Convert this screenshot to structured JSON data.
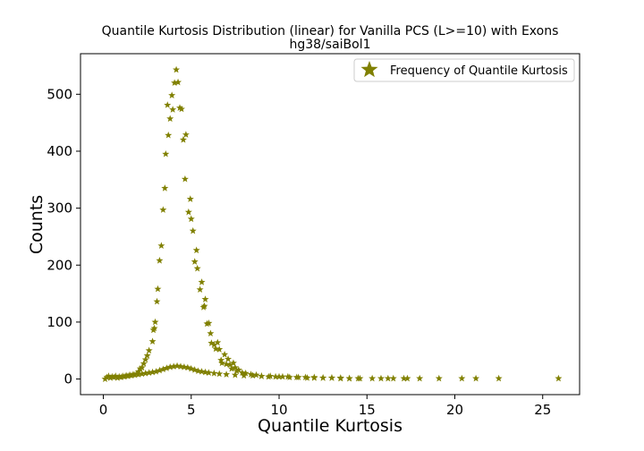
{
  "chart_data": {
    "type": "scatter",
    "title": "Quantile Kurtosis Distribution (linear) for Vanilla PCS (L>=10) with Exons",
    "subtitle": "hg38/saiBol1",
    "xlabel": "Quantile Kurtosis",
    "ylabel": "Counts",
    "xlim": [
      -1.3,
      27.1
    ],
    "ylim": [
      -27.4,
      571.2
    ],
    "xticks": [
      0,
      5,
      10,
      15,
      20,
      25
    ],
    "yticks": [
      0,
      100,
      200,
      300,
      400,
      500
    ],
    "legend_position": "top-right",
    "grid": false,
    "marker": "star",
    "color": "#808000",
    "series": [
      {
        "name": "Frequency of Quantile Kurtosis",
        "points": [
          [
            2.0,
            13
          ],
          [
            2.1,
            18
          ],
          [
            2.2,
            20
          ],
          [
            2.3,
            27
          ],
          [
            2.4,
            34
          ],
          [
            2.5,
            41
          ],
          [
            2.6,
            50
          ],
          [
            2.8,
            66
          ],
          [
            2.85,
            86
          ],
          [
            2.9,
            89
          ],
          [
            2.95,
            100
          ],
          [
            3.05,
            136
          ],
          [
            3.1,
            158
          ],
          [
            3.2,
            208
          ],
          [
            3.3,
            234
          ],
          [
            3.4,
            297
          ],
          [
            3.5,
            335
          ],
          [
            3.55,
            395
          ],
          [
            3.65,
            481
          ],
          [
            3.7,
            428
          ],
          [
            3.8,
            457
          ],
          [
            3.9,
            498
          ],
          [
            3.95,
            473
          ],
          [
            4.05,
            520
          ],
          [
            4.15,
            543
          ],
          [
            4.25,
            521
          ],
          [
            4.35,
            476
          ],
          [
            4.45,
            474
          ],
          [
            4.55,
            420
          ],
          [
            4.65,
            351
          ],
          [
            4.7,
            429
          ],
          [
            4.85,
            293
          ],
          [
            4.95,
            316
          ],
          [
            5.0,
            281
          ],
          [
            5.1,
            260
          ],
          [
            5.2,
            206
          ],
          [
            5.3,
            226
          ],
          [
            5.35,
            194
          ],
          [
            5.5,
            157
          ],
          [
            5.6,
            170
          ],
          [
            5.7,
            126
          ],
          [
            5.75,
            128
          ],
          [
            5.8,
            140
          ],
          [
            5.9,
            97
          ],
          [
            6.0,
            98
          ],
          [
            6.1,
            80
          ],
          [
            6.15,
            63
          ],
          [
            6.3,
            60
          ],
          [
            6.4,
            53
          ],
          [
            6.5,
            64
          ],
          [
            6.6,
            52
          ],
          [
            6.7,
            33
          ],
          [
            6.75,
            28
          ],
          [
            6.9,
            43
          ],
          [
            7.0,
            26
          ],
          [
            7.1,
            35
          ],
          [
            7.2,
            25
          ],
          [
            7.3,
            18
          ],
          [
            7.4,
            28
          ],
          [
            7.5,
            20
          ],
          [
            7.6,
            14
          ],
          [
            7.7,
            16
          ],
          [
            7.9,
            11
          ],
          [
            8.1,
            10
          ],
          [
            8.4,
            8
          ],
          [
            8.7,
            7
          ],
          [
            9.0,
            5
          ],
          [
            9.4,
            4
          ],
          [
            9.8,
            4
          ],
          [
            10.2,
            4
          ],
          [
            10.6,
            3
          ],
          [
            11.1,
            3
          ],
          [
            11.6,
            2
          ],
          [
            12.0,
            2
          ],
          [
            12.5,
            2
          ],
          [
            13.0,
            2
          ],
          [
            13.5,
            1
          ],
          [
            14.0,
            1
          ],
          [
            14.6,
            1
          ],
          [
            15.3,
            1
          ],
          [
            15.8,
            1
          ],
          [
            16.2,
            1
          ],
          [
            16.5,
            1
          ],
          [
            17.1,
            1
          ],
          [
            17.3,
            1
          ],
          [
            18.0,
            1
          ],
          [
            19.1,
            1
          ],
          [
            20.4,
            1
          ],
          [
            21.2,
            1
          ],
          [
            22.5,
            1
          ],
          [
            25.9,
            1
          ]
        ],
        "low_band": [
          [
            0.1,
            0
          ],
          [
            0.2,
            3
          ],
          [
            0.3,
            5
          ],
          [
            0.4,
            2
          ],
          [
            0.5,
            4
          ],
          [
            0.6,
            3
          ],
          [
            0.7,
            5
          ],
          [
            0.8,
            2
          ],
          [
            0.9,
            4
          ],
          [
            1.0,
            3
          ],
          [
            1.1,
            5
          ],
          [
            1.2,
            4
          ],
          [
            1.3,
            6
          ],
          [
            1.4,
            5
          ],
          [
            1.5,
            7
          ],
          [
            1.6,
            6
          ],
          [
            1.7,
            8
          ],
          [
            1.8,
            7
          ],
          [
            1.9,
            9
          ],
          [
            2.0,
            8
          ],
          [
            2.2,
            9
          ],
          [
            2.4,
            10
          ],
          [
            2.6,
            11
          ],
          [
            2.8,
            12
          ],
          [
            3.0,
            13
          ],
          [
            3.2,
            15
          ],
          [
            3.4,
            17
          ],
          [
            3.6,
            19
          ],
          [
            3.8,
            21
          ],
          [
            4.0,
            22
          ],
          [
            4.2,
            23
          ],
          [
            4.4,
            22
          ],
          [
            4.6,
            21
          ],
          [
            4.8,
            20
          ],
          [
            5.0,
            18
          ],
          [
            5.2,
            16
          ],
          [
            5.4,
            14
          ],
          [
            5.6,
            13
          ],
          [
            5.8,
            12
          ],
          [
            6.0,
            11
          ],
          [
            6.3,
            10
          ],
          [
            6.6,
            9
          ],
          [
            7.0,
            8
          ],
          [
            7.5,
            7
          ],
          [
            8.0,
            6
          ],
          [
            8.5,
            6
          ],
          [
            9.0,
            5
          ],
          [
            9.5,
            5
          ],
          [
            10.0,
            4
          ],
          [
            10.5,
            4
          ],
          [
            11.0,
            3
          ],
          [
            11.5,
            3
          ],
          [
            12.0,
            3
          ],
          [
            12.5,
            2
          ],
          [
            13.0,
            2
          ],
          [
            13.5,
            2
          ],
          [
            14.0,
            1
          ],
          [
            14.5,
            1
          ]
        ]
      }
    ]
  }
}
